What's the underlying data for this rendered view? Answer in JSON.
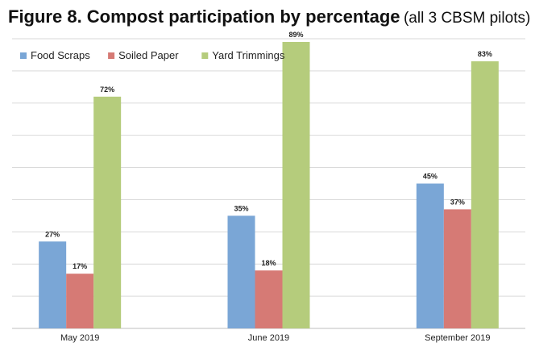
{
  "title": {
    "main": "Figure 8. Compost participation by percentage",
    "sub": "(all 3 CBSM pilots)"
  },
  "chart_data": {
    "type": "bar",
    "categories": [
      "May 2019",
      "June 2019",
      "September 2019"
    ],
    "series": [
      {
        "name": "Food Scraps",
        "color": "#7aa6d6",
        "values": [
          27,
          35,
          45
        ],
        "labels": [
          "27%",
          "35%",
          "45%"
        ]
      },
      {
        "name": "Soiled Paper",
        "color": "#d67a75",
        "values": [
          17,
          18,
          37
        ],
        "labels": [
          "17%",
          "18%",
          "37%"
        ]
      },
      {
        "name": "Yard Trimmings",
        "color": "#b5cc7c",
        "values": [
          72,
          89,
          83
        ],
        "labels": [
          "72%",
          "89%",
          "83%"
        ]
      }
    ],
    "ylim": [
      0,
      90
    ],
    "y_tick_step": 10,
    "grid": true,
    "legend": "top-left",
    "show_y_tick_labels": false,
    "colors": {
      "grid": "#d9d9d9",
      "axis": "#bfbfbf",
      "text": "#222222"
    }
  }
}
